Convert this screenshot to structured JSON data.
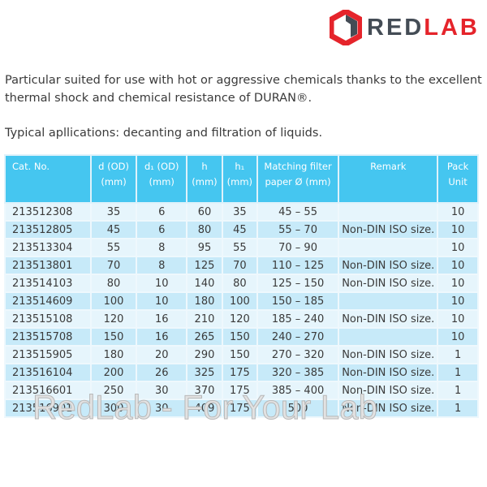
{
  "logo": {
    "text_grey": "RED",
    "text_red": "LAB"
  },
  "intro": "Particular suited for use with hot or aggressive chemicals thanks to the excellent thermal shock and chemical resistance of DURAN®.",
  "applications": "Typical apllications: decanting and filtration of liquids.",
  "table": {
    "headers": [
      [
        "Cat. No.",
        ""
      ],
      [
        "d (OD)",
        "(mm)"
      ],
      [
        "d₁ (OD)",
        "(mm)"
      ],
      [
        "h",
        "(mm)"
      ],
      [
        "h₁",
        "(mm)"
      ],
      [
        "Matching filter",
        "paper Ø (mm)"
      ],
      [
        "Remark",
        ""
      ],
      [
        "Pack",
        "Unit"
      ]
    ],
    "rows": [
      [
        "213512308",
        "35",
        "6",
        "60",
        "35",
        "45 – 55",
        "",
        "10"
      ],
      [
        "213512805",
        "45",
        "6",
        "80",
        "45",
        "55 – 70",
        "Non-DIN ISO size.",
        "10"
      ],
      [
        "213513304",
        "55",
        "8",
        "95",
        "55",
        "70 – 90",
        "",
        "10"
      ],
      [
        "213513801",
        "70",
        "8",
        "125",
        "70",
        "110 – 125",
        "Non-DIN ISO size.",
        "10"
      ],
      [
        "213514103",
        "80",
        "10",
        "140",
        "80",
        "125 – 150",
        "Non-DIN ISO size.",
        "10"
      ],
      [
        "213514609",
        "100",
        "10",
        "180",
        "100",
        "150 – 185",
        "",
        "10"
      ],
      [
        "213515108",
        "120",
        "16",
        "210",
        "120",
        "185 – 240",
        "Non-DIN ISO size.",
        "10"
      ],
      [
        "213515708",
        "150",
        "16",
        "265",
        "150",
        "240 – 270",
        "",
        "10"
      ],
      [
        "213515905",
        "180",
        "20",
        "290",
        "150",
        "270 – 320",
        "Non-DIN ISO size.",
        "1"
      ],
      [
        "213516104",
        "200",
        "26",
        "325",
        "175",
        "320 – 385",
        "Non-DIN ISO size.",
        "1"
      ],
      [
        "213516601",
        "250",
        "30",
        "370",
        "175",
        "385 – 400",
        "Non-DIN ISO size.",
        "1"
      ],
      [
        "213516901",
        "300",
        "30",
        "409",
        "175",
        "500",
        "Non-DIN ISO size.",
        "1"
      ]
    ]
  },
  "watermark": "RedLab - For Your Lab",
  "colors": {
    "header": "#45c6f0",
    "row_light": "#e6f5fc",
    "row_dark": "#c7eaf9",
    "brand_red": "#e5242b",
    "brand_grey": "#444c55"
  }
}
